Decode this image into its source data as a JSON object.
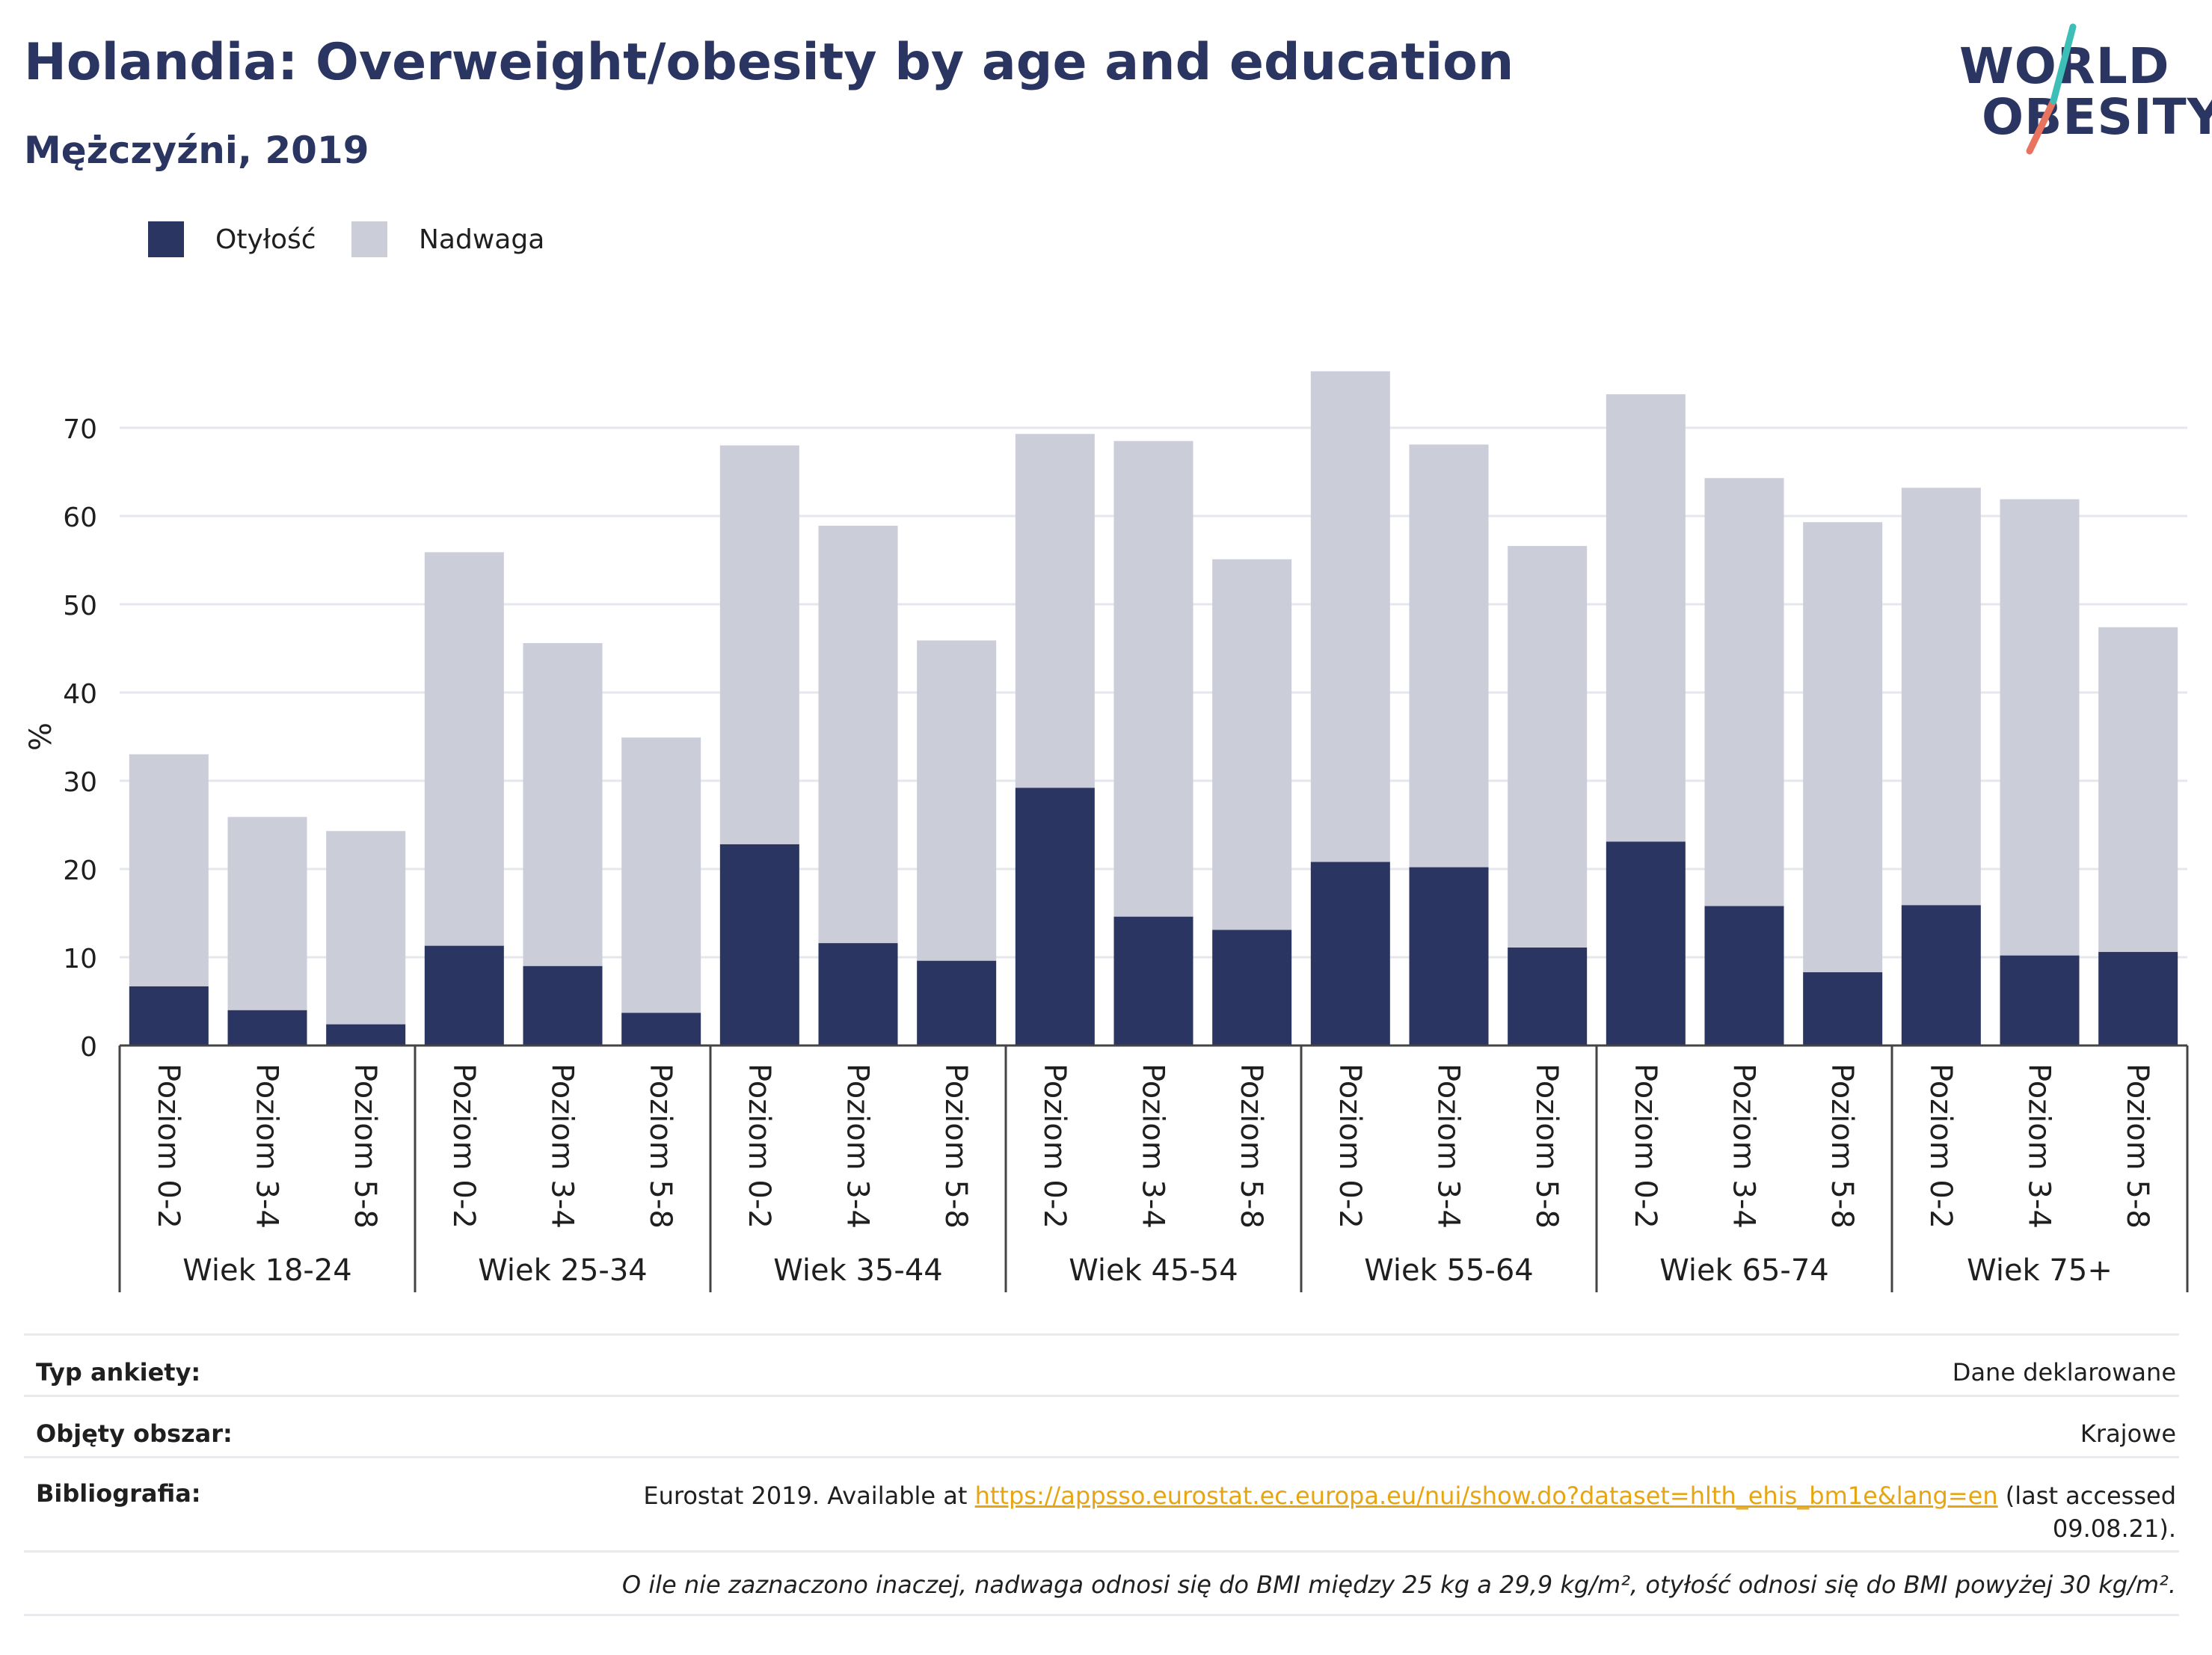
{
  "title": "Holandia: Overweight/obesity by age and education",
  "subtitle": "Mężczyźni, 2019",
  "logo": {
    "line1": "WORLD",
    "line2": "OBESITY"
  },
  "colors": {
    "obesity": "#2b3561",
    "overweight": "#cbcdd9",
    "title": "#2b3561",
    "link": "#e8a512",
    "logo_slash_top": "#3dbfb8",
    "logo_slash_bottom": "#e8735f"
  },
  "chart_data": {
    "type": "bar",
    "stacked": true,
    "ylabel": "%",
    "ylim": [
      0,
      80
    ],
    "yticks": [
      0,
      10,
      20,
      30,
      40,
      50,
      60,
      70
    ],
    "grid": true,
    "legend_position": "top-left",
    "groups": [
      "Wiek 18-24",
      "Wiek 25-34",
      "Wiek 35-44",
      "Wiek 45-54",
      "Wiek 55-64",
      "Wiek 65-74",
      "Wiek 75+"
    ],
    "subcategories": [
      "Poziom 0-2",
      "Poziom 3-4",
      "Poziom 5-8"
    ],
    "series": [
      {
        "name": "Otyłość",
        "color": "#2b3561",
        "values": [
          6.7,
          4.0,
          2.4,
          11.3,
          9.0,
          3.7,
          22.8,
          11.6,
          9.6,
          29.2,
          14.6,
          13.1,
          20.8,
          20.2,
          11.1,
          23.1,
          15.8,
          8.3,
          15.9,
          10.2,
          10.6
        ]
      },
      {
        "name": "Nadwaga",
        "color": "#cbcdd9",
        "values": [
          26.3,
          21.9,
          21.9,
          44.6,
          36.6,
          31.2,
          45.2,
          47.3,
          36.3,
          40.1,
          53.9,
          42.0,
          55.6,
          47.9,
          45.5,
          50.7,
          48.5,
          51.0,
          47.3,
          51.7,
          36.8
        ]
      }
    ]
  },
  "info": {
    "survey_type": {
      "label": "Typ ankiety:",
      "value": "Dane deklarowane"
    },
    "coverage": {
      "label": "Objęty obszar:",
      "value": "Krajowe"
    },
    "bibliography": {
      "label": "Bibliografia:",
      "prefix": "Eurostat 2019. Available at ",
      "link": "https://appsso.eurostat.ec.europa.eu/nui/show.do?dataset=hlth_ehis_bm1e&lang=en",
      "suffix_line1": " (last accessed",
      "suffix_line2": "09.08.21)."
    },
    "note": "O ile nie zaznaczono inaczej, nadwaga odnosi się do BMI między 25 kg a 29,9 kg/m², otyłość odnosi się do BMI powyżej 30 kg/m²."
  }
}
